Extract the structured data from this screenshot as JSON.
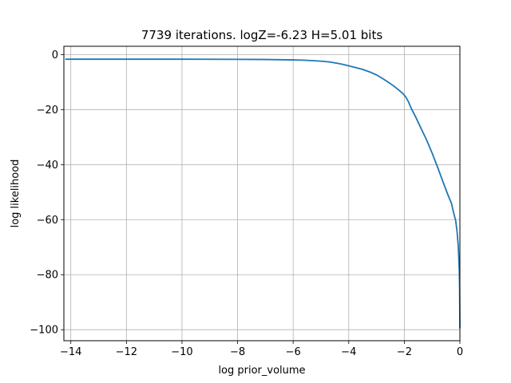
{
  "chart_data": {
    "type": "line",
    "title": "7739 iterations. logZ=-6.23 H=5.01 bits",
    "xlabel": "log prior_volume",
    "ylabel": "log likelihood",
    "xlim": [
      -14.25,
      0
    ],
    "ylim": [
      -104,
      3
    ],
    "grid": true,
    "x_ticks": [
      -14,
      -12,
      -10,
      -8,
      -6,
      -4,
      -2,
      0
    ],
    "x_tick_labels": [
      "−14",
      "−12",
      "−10",
      "−8",
      "−6",
      "−4",
      "−2",
      "0"
    ],
    "y_ticks": [
      0,
      -20,
      -40,
      -60,
      -80,
      -100
    ],
    "y_tick_labels": [
      "0",
      "−20",
      "−40",
      "−60",
      "−80",
      "−100"
    ],
    "series": [
      {
        "color": "#1f77b4",
        "x": [
          -14.2,
          -12,
          -10,
          -8,
          -7,
          -6,
          -5.5,
          -5,
          -4.7,
          -4.4,
          -4.2,
          -4.0,
          -3.8,
          -3.5,
          -3.2,
          -3.0,
          -2.8,
          -2.6,
          -2.4,
          -2.2,
          -2.05,
          -1.95,
          -1.85,
          -1.75,
          -1.6,
          -1.4,
          -1.2,
          -1.0,
          -0.8,
          -0.6,
          -0.45,
          -0.3,
          -0.25,
          -0.15,
          -0.1,
          -0.06,
          -0.04,
          -0.02,
          -0.01,
          0
        ],
        "y": [
          -1.7,
          -1.7,
          -1.7,
          -1.75,
          -1.8,
          -1.95,
          -2.1,
          -2.4,
          -2.7,
          -3.2,
          -3.6,
          -4.1,
          -4.6,
          -5.4,
          -6.5,
          -7.4,
          -8.6,
          -9.9,
          -11.3,
          -12.9,
          -14.2,
          -15.4,
          -17.2,
          -19.6,
          -22.5,
          -26.8,
          -31.0,
          -35.8,
          -41.0,
          -46.5,
          -50.5,
          -54.2,
          -56.5,
          -60.5,
          -64.5,
          -69.5,
          -74.0,
          -79.0,
          -85.0,
          -99.5
        ]
      }
    ]
  }
}
